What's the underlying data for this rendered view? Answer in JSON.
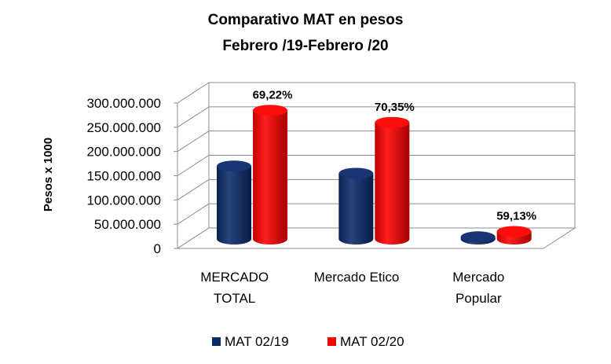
{
  "chart_data": {
    "type": "bar",
    "title": [
      "Comparativo MAT en pesos",
      "Febrero /19-Febrero /20"
    ],
    "ylabel": "Pesos x 1000",
    "ylim": [
      0,
      300000000
    ],
    "ytick_labels": [
      "0",
      "50.000.000",
      "100.000.000",
      "150.000.000",
      "200.000.000",
      "250.000.000",
      "300.000.000"
    ],
    "categories": [
      [
        "MERCADO",
        "TOTAL"
      ],
      [
        "Mercado Etico"
      ],
      [
        "Mercado",
        "Popular"
      ]
    ],
    "series": [
      {
        "name": "MAT 02/19",
        "color": "#0b2a6b",
        "values": [
          165000000,
          150000000,
          19000000
        ]
      },
      {
        "name": "MAT 02/20",
        "color": "#ff0000",
        "values": [
          280000000,
          255000000,
          30000000
        ]
      }
    ],
    "annotations": [
      "69,22%",
      "70,35%",
      "59,13%"
    ],
    "grid": true,
    "legend_position": "bottom",
    "style": "3d-cylinder"
  }
}
